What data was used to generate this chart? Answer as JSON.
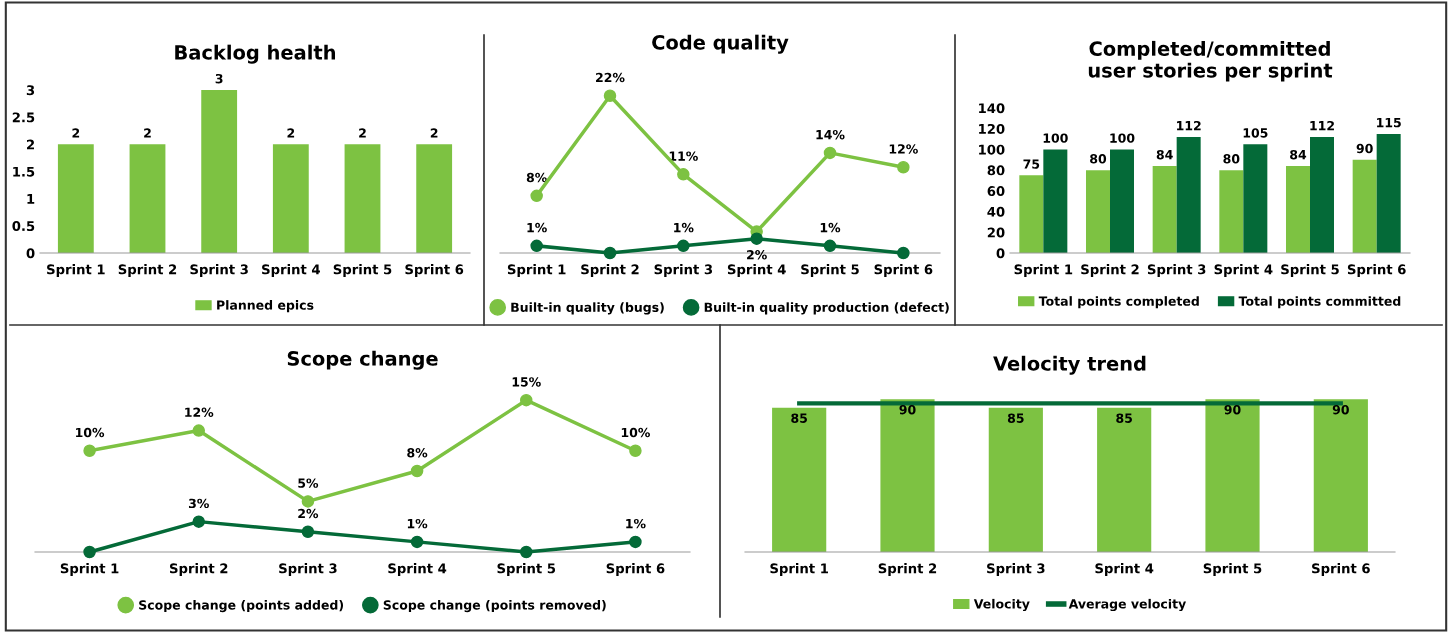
{
  "chart_data": [
    {
      "type": "bar",
      "title": "Backlog health",
      "categories": [
        "Sprint 1",
        "Sprint 2",
        "Sprint 3",
        "Sprint 4",
        "Sprint 5",
        "Sprint 6"
      ],
      "ylim": [
        0,
        3
      ],
      "yticks": [
        0,
        0.5,
        1,
        1.5,
        2,
        2.5,
        3
      ],
      "data_labels": true,
      "legend": "bottom",
      "series": [
        {
          "name": "Planned epics",
          "color": "#7dc242",
          "values": [
            2,
            2,
            3,
            2,
            2,
            2
          ]
        }
      ]
    },
    {
      "type": "line",
      "title": "Code quality",
      "categories": [
        "Sprint 1",
        "Sprint 2",
        "Sprint 3",
        "Sprint 4",
        "Sprint 5",
        "Sprint 6"
      ],
      "tick_labels": "x",
      "marker": "circle",
      "legend": "bottom",
      "series": [
        {
          "name": "Built-in quality (bugs)",
          "color": "#7dc242",
          "values": [
            8,
            22,
            11,
            3,
            14,
            12
          ],
          "value_labels": [
            "8%",
            "22%",
            "11%",
            null,
            "14%",
            "12%"
          ]
        },
        {
          "name": "Built-in quality production (defect)",
          "color": "#046a38",
          "values": [
            1,
            0,
            1,
            2,
            1,
            0
          ],
          "value_labels": [
            "1%",
            null,
            "1%",
            "2%",
            "1%",
            null
          ]
        }
      ]
    },
    {
      "type": "bar",
      "title": "Completed/committed\nuser stories per sprint",
      "categories": [
        "Sprint 1",
        "Sprint 2",
        "Sprint 3",
        "Sprint 4",
        "Sprint 5",
        "Sprint 6"
      ],
      "ylim": [
        0,
        140
      ],
      "yticks": [
        0,
        20,
        40,
        60,
        80,
        100,
        120,
        140
      ],
      "data_labels": true,
      "legend": "bottom",
      "series": [
        {
          "name": "Total points completed",
          "color": "#7dc242",
          "values": [
            75,
            80,
            84,
            80,
            84,
            90
          ]
        },
        {
          "name": "Total points committed",
          "color": "#046a38",
          "values": [
            100,
            100,
            112,
            105,
            112,
            115
          ]
        }
      ]
    },
    {
      "type": "line",
      "title": "Scope change",
      "categories": [
        "Sprint 1",
        "Sprint 2",
        "Sprint 3",
        "Sprint 4",
        "Sprint 5",
        "Sprint 6"
      ],
      "tick_labels": "x",
      "marker": "circle",
      "legend": "bottom",
      "series": [
        {
          "name": "Scope change (points added)",
          "color": "#7dc242",
          "values": [
            10,
            12,
            5,
            8,
            15,
            10
          ],
          "value_labels": [
            "10%",
            "12%",
            "5%",
            "8%",
            "15%",
            "10%"
          ]
        },
        {
          "name": "Scope change (points removed)",
          "color": "#046a38",
          "values": [
            0,
            3,
            2,
            1,
            0,
            1
          ],
          "value_labels": [
            null,
            "3%",
            "2%",
            "1%",
            null,
            "1%"
          ]
        }
      ]
    },
    {
      "type": "bar",
      "title": "Velocity trend",
      "categories": [
        "Sprint 1",
        "Sprint 2",
        "Sprint 3",
        "Sprint 4",
        "Sprint 5",
        "Sprint 6"
      ],
      "tick_labels": "x",
      "legend": "bottom",
      "series": [
        {
          "name": "Velocity",
          "color": "#7dc242",
          "values": [
            85,
            90,
            85,
            85,
            90,
            90
          ],
          "value_labels": [
            "85",
            "90",
            "85",
            "85",
            "90",
            "90"
          ]
        },
        {
          "name": "Average velocity",
          "type": "line",
          "color": "#046a38",
          "values": [
            87.5,
            87.5,
            87.5,
            87.5,
            87.5,
            87.5
          ]
        }
      ]
    }
  ]
}
